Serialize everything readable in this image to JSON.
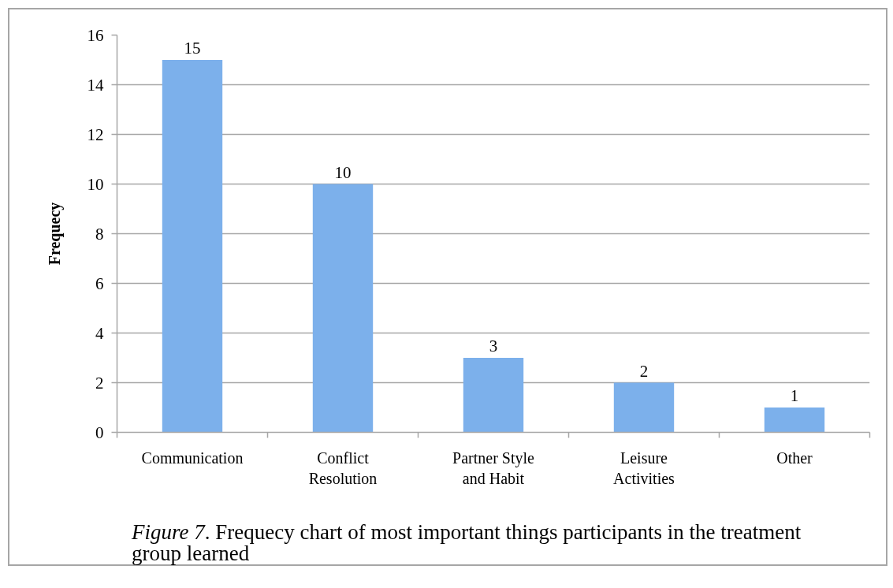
{
  "chart_data": {
    "type": "bar",
    "ylabel": "Frequecy",
    "categories": [
      "Communication",
      "Conflict Resolution",
      "Partner Style and Habit",
      "Leisure Activities",
      "Other"
    ],
    "values": [
      15,
      10,
      3,
      2,
      1
    ],
    "color": "#7cb0eb",
    "ylim": [
      0,
      16
    ],
    "yticks": [
      0,
      2,
      4,
      6,
      8,
      10,
      12,
      14,
      16
    ],
    "grid": "y",
    "data_labels": true,
    "annotations": [
      "Figure 7. Frequecy chart of most important things participants in the treatment group learned"
    ]
  }
}
